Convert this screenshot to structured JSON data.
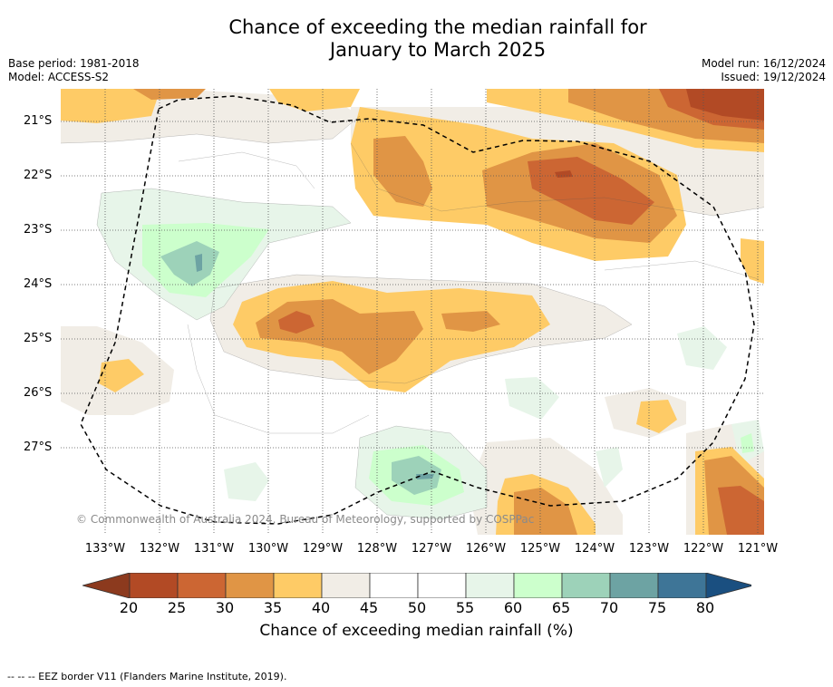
{
  "title_line1": "Chance of exceeding the median rainfall for",
  "title_line2": "January to March 2025",
  "base_period": "Base period: 1981-2018",
  "model": "Model: ACCESS-S2",
  "model_run": "Model run: 16/12/2024",
  "issued": "Issued: 19/12/2024",
  "copyright": "© Commonwealth of Australia 2024, Bureau of Meteorology, supported by COSPPac",
  "lat_labels": [
    "21°S",
    "22°S",
    "23°S",
    "24°S",
    "25°S",
    "26°S",
    "27°S"
  ],
  "lon_labels": [
    "133°W",
    "132°W",
    "131°W",
    "130°W",
    "129°W",
    "128°W",
    "127°W",
    "126°W",
    "125°W",
    "124°W",
    "123°W",
    "122°W",
    "121°W"
  ],
  "colorbar": {
    "ticks": [
      "20",
      "25",
      "30",
      "35",
      "40",
      "45",
      "50",
      "55",
      "60",
      "65",
      "70",
      "75",
      "80"
    ],
    "colors": [
      "#8c3a1e",
      "#b24a25",
      "#cc6633",
      "#e09545",
      "#fecb66",
      "#f1ede6",
      "#ffffff",
      "#ffffff",
      "#e7f5e9",
      "#ccffcc",
      "#9dd2b9",
      "#6da3a3",
      "#3e7597",
      "#1a4f80"
    ],
    "label": "Chance of exceeding median rainfall (%)"
  },
  "footer": "--  --  -- EEZ border V11 (Flanders Marine Institute, 2019)."
}
